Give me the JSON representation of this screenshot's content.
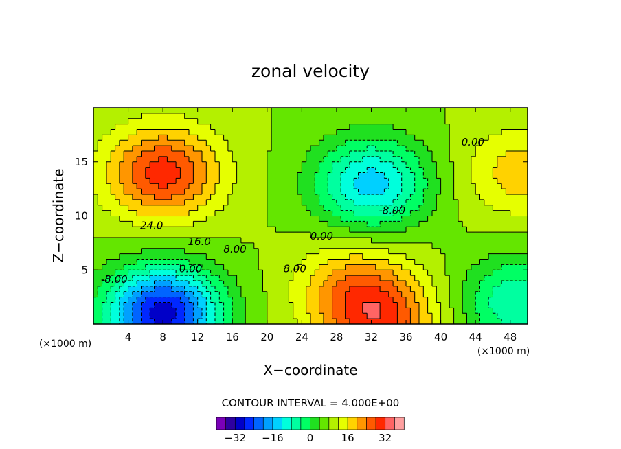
{
  "chart_data": {
    "type": "heatmap",
    "subtype": "filled-contour",
    "title": "zonal velocity",
    "xlabel": "X−coordinate",
    "ylabel": "Z−coordinate",
    "x_unit_label": "(×1000 m)",
    "x_unit_label_right": "(×1000 m)",
    "xlim": [
      0,
      50
    ],
    "ylim": [
      0,
      20
    ],
    "xticks": [
      4,
      8,
      12,
      16,
      20,
      24,
      28,
      32,
      36,
      40,
      44,
      48
    ],
    "xtick_labels": [
      "4",
      "8",
      "12",
      "16",
      "20",
      "24",
      "28",
      "32",
      "36",
      "40",
      "44",
      "48"
    ],
    "yticks": [
      5,
      10,
      15
    ],
    "ytick_labels": [
      "5",
      "10",
      "15"
    ],
    "contour_interval_text": "CONTOUR INTERVAL = 4.000E+00",
    "contour_interval": 4,
    "contour_labels": [
      {
        "text": "24.0",
        "x": 6.7,
        "y": 8.8
      },
      {
        "text": "16.0",
        "x": 12.2,
        "y": 7.3
      },
      {
        "text": "8.00",
        "x": 16.3,
        "y": 6.6
      },
      {
        "text": "0.00",
        "x": 11.2,
        "y": 4.8
      },
      {
        "text": "-8.00",
        "x": 2.4,
        "y": 3.8
      },
      {
        "text": "8.00",
        "x": 23.2,
        "y": 4.8
      },
      {
        "text": "0.00",
        "x": 26.3,
        "y": 7.8
      },
      {
        "text": "-8.00",
        "x": 34.4,
        "y": 10.2
      },
      {
        "text": "0.00",
        "x": 43.7,
        "y": 16.5
      }
    ],
    "field_centers": [
      {
        "x": 8,
        "y": 14,
        "value": 30
      },
      {
        "x": 8,
        "y": 1,
        "value": -30
      },
      {
        "x": 32,
        "y": 13,
        "value": -14
      },
      {
        "x": 30,
        "y": 3.5,
        "value": 20
      },
      {
        "x": 33,
        "y": 0.2,
        "value": 26
      },
      {
        "x": 49,
        "y": 14,
        "value": 18
      },
      {
        "x": 49,
        "y": 2,
        "value": -8
      }
    ],
    "colorbar": {
      "levels": [
        -40,
        -36,
        -32,
        -28,
        -24,
        -20,
        -16,
        -12,
        -8,
        -4,
        0,
        4,
        8,
        12,
        16,
        20,
        24,
        28,
        32,
        36,
        40
      ],
      "colors": [
        "#7a00b8",
        "#2e00a0",
        "#0000c8",
        "#0028ff",
        "#0064ff",
        "#00a0ff",
        "#00d0ff",
        "#00ffdc",
        "#00ffa0",
        "#00ff64",
        "#20e020",
        "#64e600",
        "#b4f000",
        "#e6ff00",
        "#ffd200",
        "#ff9600",
        "#ff5a00",
        "#ff2800",
        "#ff6464",
        "#ffa0a0"
      ],
      "tick_values": [
        -32,
        -16,
        0,
        16,
        32
      ],
      "tick_labels": [
        "−32",
        "−16",
        "0",
        "16",
        "32"
      ]
    }
  }
}
